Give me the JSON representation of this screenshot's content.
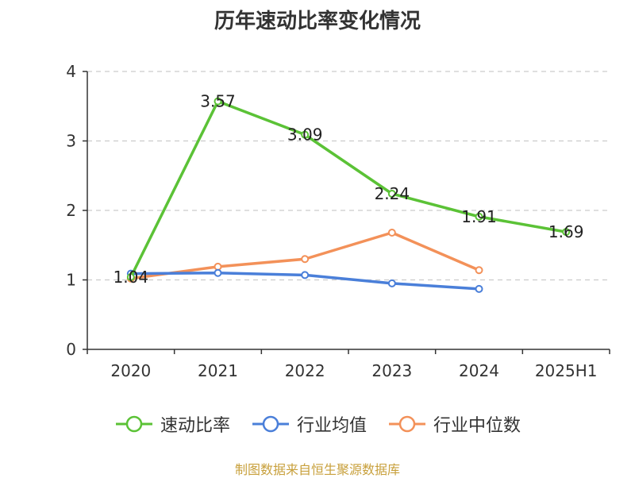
{
  "chart_data": {
    "type": "line",
    "title": "历年速动比率变化情况",
    "categories": [
      "2020",
      "2021",
      "2022",
      "2023",
      "2024",
      "2025H1"
    ],
    "ylim": [
      0,
      4
    ],
    "yticks": [
      0,
      1,
      2,
      3,
      4
    ],
    "grid": true,
    "legend_position": "bottom",
    "series": [
      {
        "name": "速动比率",
        "color": "#5bc236",
        "values": [
          1.04,
          3.57,
          3.09,
          2.24,
          1.91,
          1.69
        ],
        "labels": [
          "1.04",
          "3.57",
          "3.09",
          "2.24",
          "1.91",
          "1.69"
        ]
      },
      {
        "name": "行业均值",
        "color": "#4a7fd9",
        "values": [
          1.09,
          1.1,
          1.07,
          0.95,
          0.87,
          null
        ]
      },
      {
        "name": "行业中位数",
        "color": "#f39159",
        "values": [
          1.02,
          1.19,
          1.3,
          1.68,
          1.14,
          null
        ]
      }
    ]
  },
  "footer": {
    "source": "制图数据来自恒生聚源数据库"
  }
}
